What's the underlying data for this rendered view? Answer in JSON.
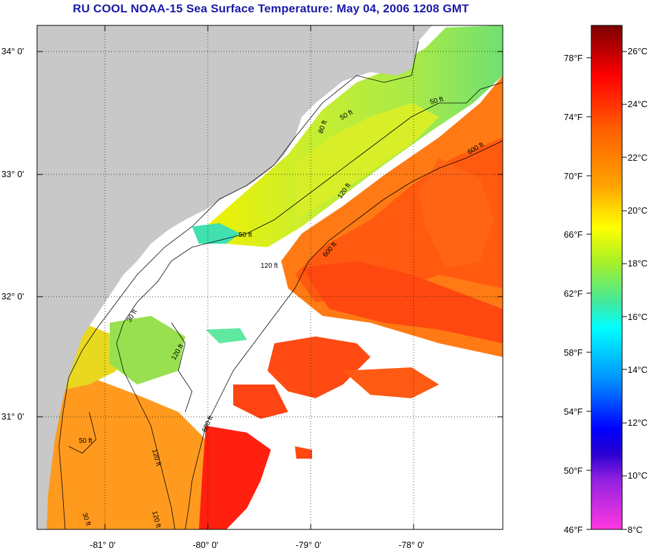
{
  "title": "RU COOL  NOAA-15  Sea Surface Temperature:  May 04, 2006 1208 GMT",
  "lat_labels": [
    "34° 0'",
    "33° 0'",
    "32° 0'",
    "31° 0'"
  ],
  "lon_labels": [
    "-81° 0'",
    "-80° 0'",
    "-79° 0'",
    "-78° 0'"
  ],
  "contour_labels": [
    "50 ft",
    "80 ft",
    "120 ft",
    "600 ft",
    "50 ft",
    "120 ft",
    "600 ft",
    "120 ft",
    "30 ft",
    "50 ft",
    "120 ft",
    "30 ft",
    "600 ft",
    "120 ft",
    "50 ft"
  ],
  "colorbar": {
    "fahrenheit_labels": [
      "78°F",
      "74°F",
      "70°F",
      "66°F",
      "62°F",
      "58°F",
      "54°F",
      "50°F",
      "46°F"
    ],
    "celsius_labels": [
      "26°C",
      "24°C",
      "22°C",
      "20°C",
      "18°C",
      "16°C",
      "14°C",
      "12°C",
      "10°C",
      "8°C"
    ],
    "range_c": [
      8,
      27
    ]
  },
  "colors": {
    "land": "#c8c8c8",
    "cloud": "#ffffff",
    "title": "#1a1aa8"
  }
}
